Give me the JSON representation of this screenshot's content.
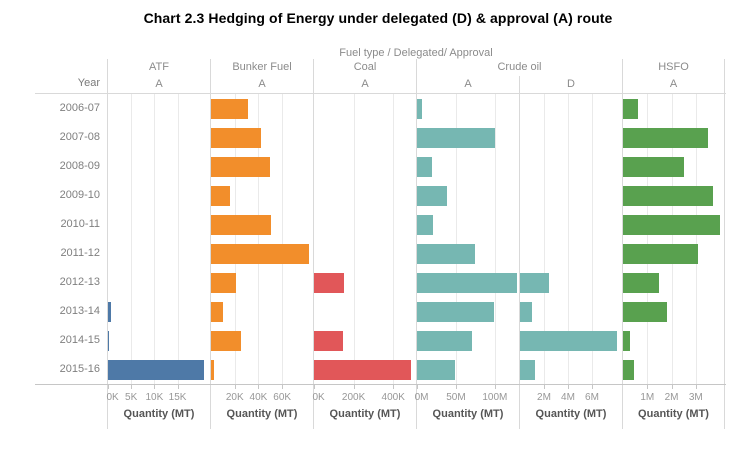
{
  "chart_data": {
    "type": "bar",
    "orientation": "horizontal",
    "title": "Chart 2.3 Hedging of Energy under delegated (D) & approval (A) route",
    "column_field_label": "Fuel type / Delegated/ Approval",
    "row_field_label": "Year",
    "axis_title": "Quantity (MT)",
    "unit": "MT",
    "grid": "vertical gridlines on, per-panel independent x scales",
    "legend": "none",
    "categories": [
      "2006-07",
      "2007-08",
      "2008-09",
      "2009-10",
      "2010-11",
      "2011-12",
      "2012-13",
      "2013-14",
      "2014-15",
      "2015-16"
    ],
    "fuel_groups": [
      {
        "label": "ATF",
        "cols": 1
      },
      {
        "label": "Bunker Fuel",
        "cols": 1
      },
      {
        "label": "Coal",
        "cols": 1
      },
      {
        "label": "Crude oil",
        "cols": 2
      },
      {
        "label": "HSFO",
        "cols": 1
      }
    ],
    "panels": [
      {
        "fuel": "ATF",
        "route": "A",
        "color": "#4e79a7",
        "axis_max": 22000,
        "ticks": [
          {
            "label": "0K",
            "v": 0
          },
          {
            "label": "5K",
            "v": 5000
          },
          {
            "label": "10K",
            "v": 10000
          },
          {
            "label": "15K",
            "v": 15000
          }
        ],
        "values": [
          0,
          0,
          0,
          0,
          0,
          0,
          0,
          650,
          250,
          20800
        ]
      },
      {
        "fuel": "Bunker Fuel",
        "route": "A",
        "color": "#f28e2b",
        "axis_max": 86000,
        "ticks": [
          {
            "label": "20K",
            "v": 20000
          },
          {
            "label": "40K",
            "v": 40000
          },
          {
            "label": "60K",
            "v": 60000
          }
        ],
        "values": [
          31000,
          42000,
          50000,
          16000,
          51000,
          83000,
          21000,
          10000,
          25000,
          2500
        ]
      },
      {
        "fuel": "Coal",
        "route": "A",
        "color": "#e15759",
        "axis_max": 515000,
        "ticks": [
          {
            "label": "0K",
            "v": 0
          },
          {
            "label": "200K",
            "v": 200000
          },
          {
            "label": "400K",
            "v": 400000
          }
        ],
        "values": [
          0,
          0,
          0,
          0,
          0,
          0,
          152000,
          0,
          145000,
          490000
        ]
      },
      {
        "fuel": "Crude oil",
        "route": "A",
        "color": "#76b7b2",
        "axis_max": 131000000,
        "ticks": [
          {
            "label": "0M",
            "v": 0
          },
          {
            "label": "50M",
            "v": 50000000
          },
          {
            "label": "100M",
            "v": 100000000
          }
        ],
        "values": [
          6000000,
          100000000,
          19000000,
          38000000,
          20000000,
          75000000,
          128000000,
          99000000,
          70000000,
          49000000
        ]
      },
      {
        "fuel": "Crude oil",
        "route": "D",
        "color": "#76b7b2",
        "axis_max": 8500000,
        "ticks": [
          {
            "label": "2M",
            "v": 2000000
          },
          {
            "label": "4M",
            "v": 4000000
          },
          {
            "label": "6M",
            "v": 6000000
          }
        ],
        "values": [
          0,
          0,
          0,
          0,
          0,
          0,
          2450000,
          1000000,
          8100000,
          1250000
        ]
      },
      {
        "fuel": "HSFO",
        "route": "A",
        "color": "#59a14f",
        "axis_max": 4160000,
        "ticks": [
          {
            "label": "1M",
            "v": 1000000
          },
          {
            "label": "2M",
            "v": 2000000
          },
          {
            "label": "3M",
            "v": 3000000
          }
        ],
        "values": [
          600000,
          3500000,
          2500000,
          3700000,
          4000000,
          3100000,
          1500000,
          1800000,
          280000,
          440000
        ]
      }
    ]
  }
}
